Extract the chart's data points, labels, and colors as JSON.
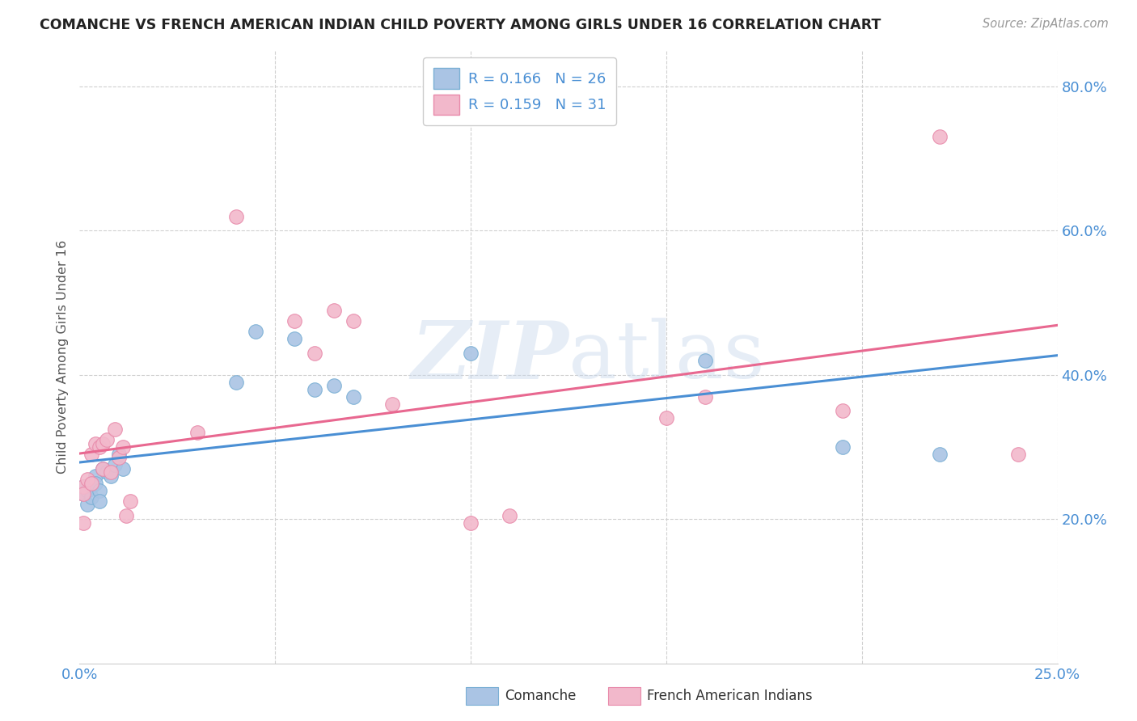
{
  "title": "COMANCHE VS FRENCH AMERICAN INDIAN CHILD POVERTY AMONG GIRLS UNDER 16 CORRELATION CHART",
  "source": "Source: ZipAtlas.com",
  "ylabel": "Child Poverty Among Girls Under 16",
  "xlim": [
    0.0,
    0.25
  ],
  "ylim": [
    0.0,
    0.85
  ],
  "background_color": "#ffffff",
  "grid_color": "#d0d0d0",
  "watermark": "ZIPatlas",
  "comanche_color": "#aac4e4",
  "comanche_edge_color": "#7aafd4",
  "french_color": "#f2b8cb",
  "french_edge_color": "#e88aaa",
  "line_comanche_color": "#4a8fd4",
  "line_french_color": "#e86890",
  "r_comanche": "0.166",
  "n_comanche": "26",
  "r_french": "0.159",
  "n_french": "31",
  "legend_label_comanche": "Comanche",
  "legend_label_french": "French American Indians",
  "comanche_x": [
    0.001,
    0.001,
    0.002,
    0.002,
    0.003,
    0.003,
    0.004,
    0.004,
    0.005,
    0.005,
    0.006,
    0.007,
    0.008,
    0.009,
    0.01,
    0.011,
    0.04,
    0.045,
    0.055,
    0.06,
    0.065,
    0.07,
    0.1,
    0.16,
    0.195,
    0.22
  ],
  "comanche_y": [
    0.245,
    0.235,
    0.24,
    0.22,
    0.245,
    0.23,
    0.26,
    0.25,
    0.24,
    0.225,
    0.27,
    0.265,
    0.26,
    0.275,
    0.29,
    0.27,
    0.39,
    0.46,
    0.45,
    0.38,
    0.385,
    0.37,
    0.43,
    0.42,
    0.3,
    0.29
  ],
  "french_x": [
    0.001,
    0.001,
    0.001,
    0.002,
    0.003,
    0.003,
    0.004,
    0.005,
    0.006,
    0.006,
    0.007,
    0.008,
    0.009,
    0.01,
    0.011,
    0.012,
    0.013,
    0.03,
    0.04,
    0.055,
    0.06,
    0.065,
    0.07,
    0.08,
    0.1,
    0.11,
    0.15,
    0.16,
    0.195,
    0.22,
    0.24
  ],
  "french_y": [
    0.245,
    0.235,
    0.195,
    0.255,
    0.29,
    0.25,
    0.305,
    0.3,
    0.27,
    0.305,
    0.31,
    0.265,
    0.325,
    0.285,
    0.3,
    0.205,
    0.225,
    0.32,
    0.62,
    0.475,
    0.43,
    0.49,
    0.475,
    0.36,
    0.195,
    0.205,
    0.34,
    0.37,
    0.35,
    0.73,
    0.29
  ]
}
